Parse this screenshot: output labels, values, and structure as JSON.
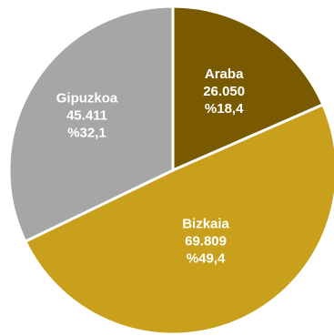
{
  "chart_data": {
    "type": "pie",
    "categories": [
      "Araba",
      "Bizkaia",
      "Gipuzkoa"
    ],
    "values": [
      26050,
      69809,
      45411
    ],
    "value_labels": [
      "26.050",
      "69.809",
      "45.411"
    ],
    "percent_labels": [
      "%18,4",
      "%49,4",
      "%32,1"
    ],
    "colors": [
      "#7a5a00",
      "#c9a01c",
      "#a6a6a6"
    ],
    "slice_border_color": "#ffffff",
    "start_angle_deg": 0,
    "direction": "clockwise",
    "legend": "none"
  }
}
